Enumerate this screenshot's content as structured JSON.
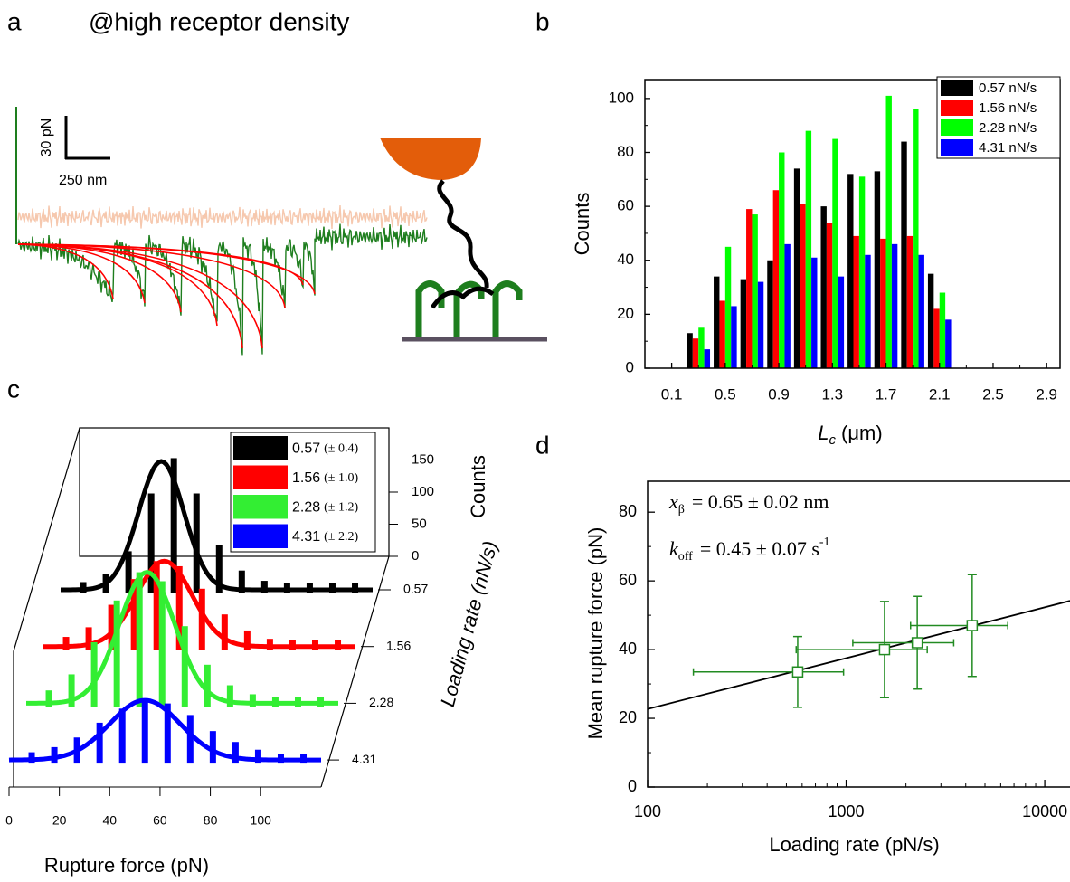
{
  "chart_data": [
    {
      "type": "diagram",
      "label": "a",
      "title": "@high receptor density",
      "scale_labels": [
        "30 pN",
        "250 nm"
      ]
    },
    {
      "type": "bar",
      "label": "b",
      "x": [
        0.3,
        0.5,
        0.7,
        0.9,
        1.1,
        1.3,
        1.5,
        1.7,
        1.9,
        2.1
      ],
      "series": [
        {
          "name": "0.57 nN/s",
          "color": "#000000",
          "values": [
            13,
            34,
            33,
            40,
            74,
            60,
            72,
            73,
            84,
            35
          ]
        },
        {
          "name": "1.56 nN/s",
          "color": "#ff0000",
          "values": [
            11,
            25,
            59,
            66,
            61,
            54,
            49,
            48,
            49,
            22
          ]
        },
        {
          "name": "2.28 nN/s",
          "color": "#00ff00",
          "values": [
            15,
            45,
            57,
            80,
            88,
            85,
            71,
            101,
            96,
            28
          ]
        },
        {
          "name": "4.31 nN/s",
          "color": "#0000ff",
          "values": [
            7,
            23,
            32,
            46,
            41,
            34,
            42,
            46,
            42,
            18
          ]
        }
      ],
      "xlim": [
        -0.1,
        3.0
      ],
      "xticks": [
        0.1,
        0.5,
        0.9,
        1.3,
        1.7,
        2.1,
        2.5,
        2.9
      ],
      "xminor": [
        0.3,
        0.7,
        1.1,
        1.5,
        1.9,
        2.3,
        2.7
      ],
      "ylim": [
        0,
        107
      ],
      "yticks": [
        0,
        20,
        40,
        60,
        80,
        100
      ],
      "yminor": [
        10,
        30,
        50,
        70,
        90
      ],
      "xlabel": {
        "symbol": "L",
        "subscript": "c",
        "unit": "(μm)"
      },
      "ylabel": "Counts",
      "legend": "upper right"
    },
    {
      "type": "waterfall",
      "label": "c",
      "x": [
        9,
        18,
        27,
        36,
        45,
        54,
        63,
        72,
        81,
        90,
        99,
        108,
        117
      ],
      "series": [
        {
          "name": "0.57",
          "error": "(± 0.4)",
          "color": "#000000",
          "values": [
            12,
            25,
            60,
            150,
            205,
            150,
            70,
            30,
            14,
            10,
            10,
            10,
            10
          ],
          "fit": {
            "center": 40,
            "sd": 9,
            "height": 200
          }
        },
        {
          "name": "1.56",
          "error": "(± 1.0)",
          "color": "#ff0000",
          "values": [
            15,
            30,
            65,
            105,
            133,
            125,
            90,
            50,
            25,
            12,
            10,
            10,
            10
          ],
          "fit": {
            "center": 48,
            "sd": 11,
            "height": 133
          }
        },
        {
          "name": "2.28",
          "error": "(± 1.2)",
          "color": "#33ee33",
          "values": [
            20,
            45,
            95,
            160,
            204,
            190,
            120,
            60,
            28,
            14,
            10,
            10,
            10
          ],
          "fit": {
            "center": 48,
            "sd": 11,
            "height": 204
          }
        },
        {
          "name": "4.31",
          "error": "(± 2.2)",
          "color": "#0000ff",
          "values": [
            12,
            20,
            35,
            58,
            80,
            93,
            88,
            70,
            45,
            28,
            16,
            10,
            10
          ],
          "fit": {
            "center": 54,
            "sd": 14,
            "height": 93
          }
        }
      ],
      "xlim": [
        0,
        124
      ],
      "xticks": [
        0,
        20,
        40,
        60,
        80,
        100
      ],
      "zlim": [
        0,
        200
      ],
      "zticks": [
        0,
        50,
        100,
        150
      ],
      "xlabel": "Rupture force (pN)",
      "zlabel": "Counts",
      "ylabel": "Loading rate (nN/s)"
    },
    {
      "type": "scatter",
      "label": "d",
      "color": "#228b22",
      "log_x": true,
      "x": [
        570,
        1560,
        2280,
        4310
      ],
      "xerr": [
        400,
        1000,
        1200,
        2200
      ],
      "values": [
        33.5,
        40,
        42,
        47
      ],
      "yerr": [
        10.3,
        14,
        13.5,
        14.8
      ],
      "fit_line": {
        "x": [
          100,
          13400
        ],
        "y": [
          22.7,
          54.2
        ]
      },
      "xlim": [
        100,
        13400
      ],
      "xticks": [
        100,
        1000,
        10000
      ],
      "xminor": [
        200,
        300,
        400,
        500,
        600,
        700,
        800,
        900,
        2000,
        3000,
        4000,
        5000,
        6000,
        7000,
        8000,
        9000
      ],
      "ylim": [
        0,
        89
      ],
      "yticks": [
        0,
        20,
        40,
        60,
        80
      ],
      "yminor": [
        10,
        30,
        50,
        70
      ],
      "xlabel": "Loading rate (pN/s)",
      "ylabel": "Mean rupture force (pN)",
      "annotations": [
        {
          "symbol": "x",
          "subscript": "β",
          "text": "= 0.65 ± 0.02 nm"
        },
        {
          "symbol": "k",
          "subscript": "off",
          "text": "= 0.45 ± 0.07 s",
          "superscript": "-1"
        }
      ]
    }
  ]
}
